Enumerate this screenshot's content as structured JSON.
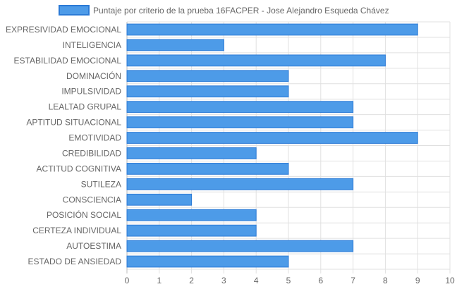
{
  "chart_data": {
    "type": "bar",
    "orientation": "horizontal",
    "categories": [
      "EXPRESIVIDAD EMOCIONAL",
      "INTELIGENCIA",
      "ESTABILIDAD EMOCIONAL",
      "DOMINACIÓN",
      "IMPULSIVIDAD",
      "LEALTAD GRUPAL",
      "APTITUD SITUACIONAL",
      "EMOTIVIDAD",
      "CREDIBILIDAD",
      "ACTITUD COGNITIVA",
      "SUTILEZA",
      "CONSCIENCIA",
      "POSICIÓN SOCIAL",
      "CERTEZA INDIVIDUAL",
      "AUTOESTIMA",
      "ESTADO DE ANSIEDAD"
    ],
    "series": [
      {
        "name": "Puntaje por criterio de la prueba 16FACPER - Jose Alejandro Esqueda Chávez",
        "values": [
          9,
          3,
          8,
          5,
          5,
          7,
          7,
          9,
          4,
          5,
          7,
          2,
          4,
          4,
          7,
          5
        ],
        "color": "#4d9be8",
        "border_color": "#2b7ad6"
      }
    ],
    "xlim": [
      0,
      10
    ],
    "x_ticks": [
      "0",
      "1",
      "2",
      "3",
      "4",
      "5",
      "6",
      "7",
      "8",
      "9",
      "10"
    ],
    "grid": true,
    "legend_position": "top"
  }
}
